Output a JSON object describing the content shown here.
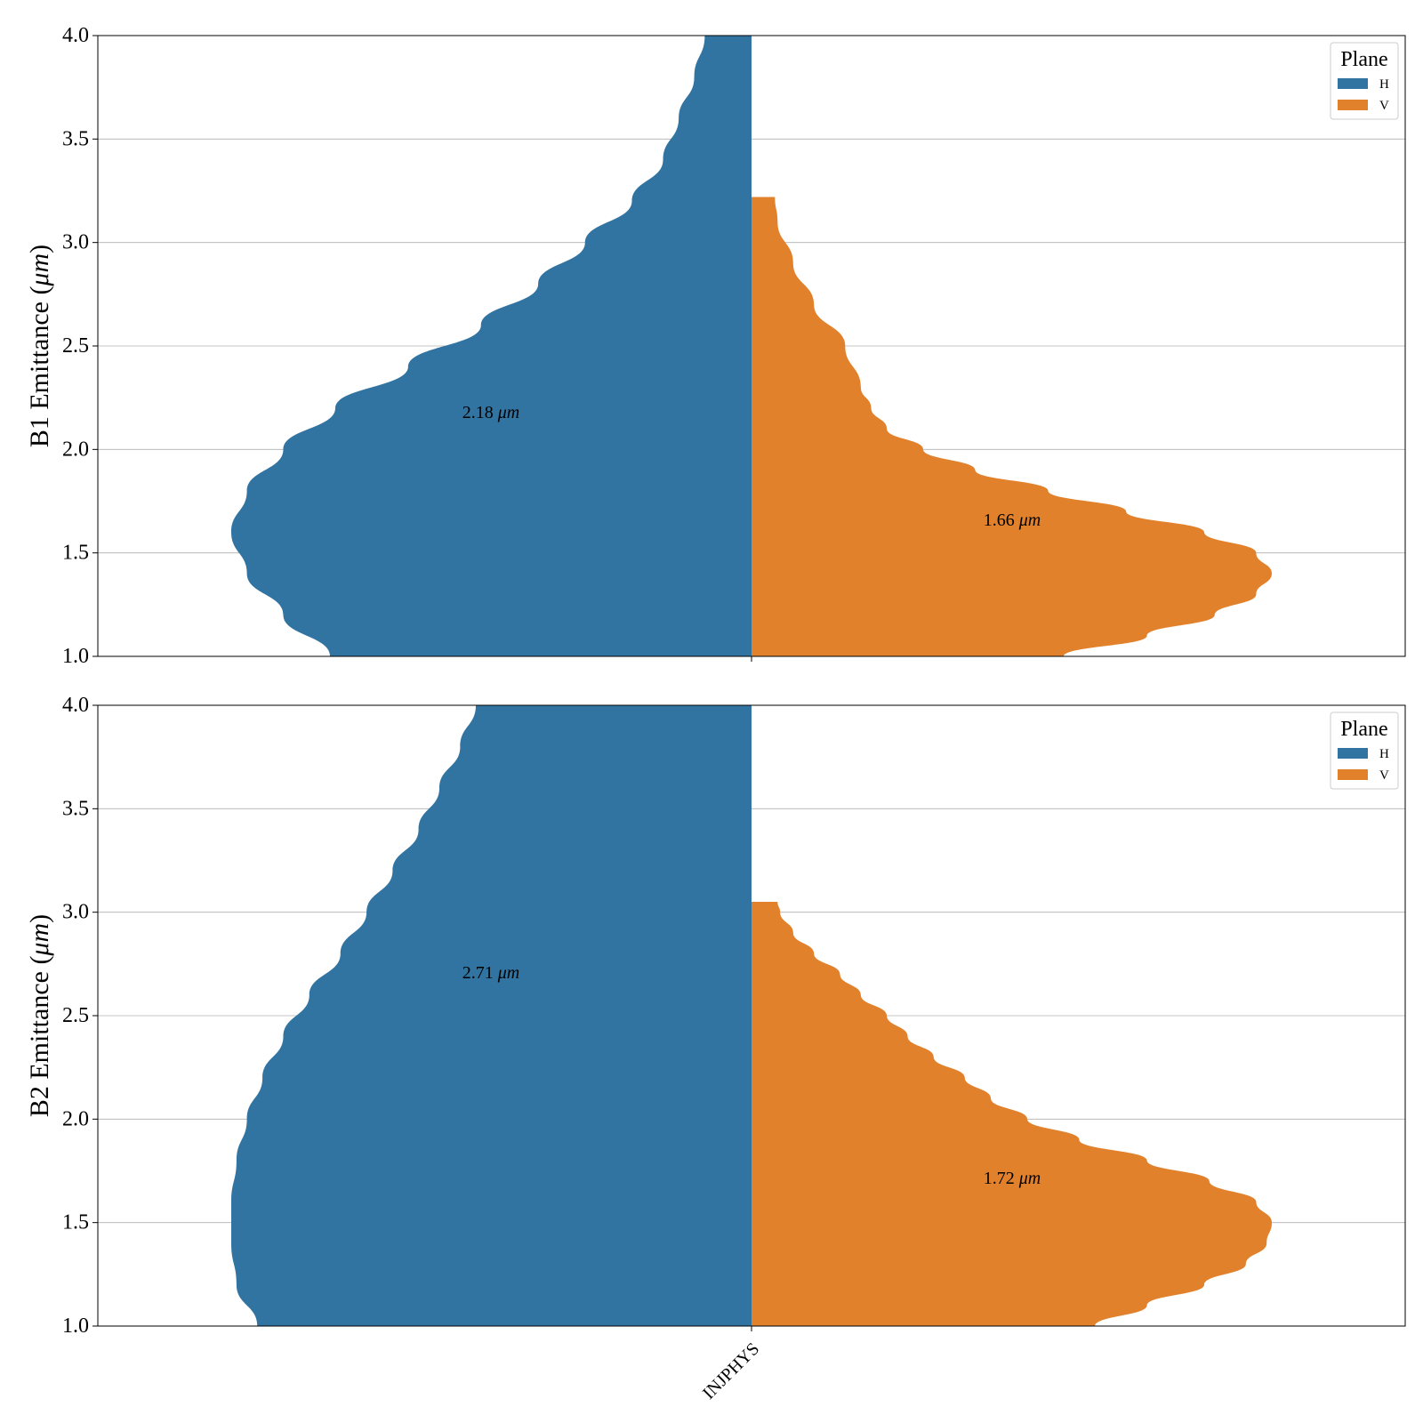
{
  "chart_data": [
    {
      "type": "violin",
      "ylabel": "B1 Emittance (μm)",
      "ylabel_prefix": "B1 Emittance (",
      "ylabel_unit": "μm",
      "ylabel_suffix": ")",
      "ylim": [
        1.0,
        4.0
      ],
      "yticks": [
        "1.0",
        "1.5",
        "2.0",
        "2.5",
        "3.0",
        "3.5",
        "4.0"
      ],
      "grid": "y",
      "legend": {
        "title": "Plane",
        "placement": "top-right",
        "entries": [
          "H",
          "V"
        ]
      },
      "categories": [
        "INJPHYS"
      ],
      "series": [
        {
          "name": "H",
          "color": "#3274a1",
          "median_label": "2.18",
          "median_value": 2.18,
          "median_unit": "μm",
          "density": [
            [
              1.0,
              0.81
            ],
            [
              1.2,
              0.9
            ],
            [
              1.4,
              0.97
            ],
            [
              1.6,
              1.0
            ],
            [
              1.8,
              0.97
            ],
            [
              2.0,
              0.9
            ],
            [
              2.2,
              0.8
            ],
            [
              2.4,
              0.66
            ],
            [
              2.6,
              0.52
            ],
            [
              2.8,
              0.41
            ],
            [
              3.0,
              0.32
            ],
            [
              3.2,
              0.23
            ],
            [
              3.4,
              0.17
            ],
            [
              3.6,
              0.14
            ],
            [
              3.8,
              0.11
            ],
            [
              4.0,
              0.09
            ]
          ]
        },
        {
          "name": "V",
          "color": "#e1812c",
          "median_label": "1.66",
          "median_value": 1.66,
          "median_unit": "μm",
          "max_value": 3.22,
          "density": [
            [
              1.0,
              0.6
            ],
            [
              1.1,
              0.76
            ],
            [
              1.2,
              0.89
            ],
            [
              1.3,
              0.97
            ],
            [
              1.4,
              1.0
            ],
            [
              1.5,
              0.97
            ],
            [
              1.6,
              0.87
            ],
            [
              1.7,
              0.72
            ],
            [
              1.8,
              0.57
            ],
            [
              1.9,
              0.43
            ],
            [
              2.0,
              0.33
            ],
            [
              2.1,
              0.26
            ],
            [
              2.2,
              0.23
            ],
            [
              2.3,
              0.21
            ],
            [
              2.5,
              0.18
            ],
            [
              2.7,
              0.12
            ],
            [
              2.9,
              0.08
            ],
            [
              3.1,
              0.05
            ],
            [
              3.22,
              0.045
            ]
          ]
        }
      ]
    },
    {
      "type": "violin",
      "ylabel": "B2 Emittance (μm)",
      "ylabel_prefix": "B2 Emittance (",
      "ylabel_unit": "μm",
      "ylabel_suffix": ")",
      "ylim": [
        1.0,
        4.0
      ],
      "yticks": [
        "1.0",
        "1.5",
        "2.0",
        "2.5",
        "3.0",
        "3.5",
        "4.0"
      ],
      "grid": "y",
      "legend": {
        "title": "Plane",
        "placement": "top-right",
        "entries": [
          "H",
          "V"
        ]
      },
      "categories": [
        "INJPHYS"
      ],
      "series": [
        {
          "name": "H",
          "color": "#3274a1",
          "median_label": "2.71",
          "median_value": 2.71,
          "median_unit": "μm",
          "density": [
            [
              1.0,
              0.95
            ],
            [
              1.2,
              0.99
            ],
            [
              1.4,
              1.0
            ],
            [
              1.6,
              1.0
            ],
            [
              1.8,
              0.99
            ],
            [
              2.0,
              0.97
            ],
            [
              2.2,
              0.94
            ],
            [
              2.4,
              0.9
            ],
            [
              2.6,
              0.85
            ],
            [
              2.8,
              0.79
            ],
            [
              3.0,
              0.74
            ],
            [
              3.2,
              0.69
            ],
            [
              3.4,
              0.64
            ],
            [
              3.6,
              0.6
            ],
            [
              3.8,
              0.56
            ],
            [
              4.0,
              0.53
            ]
          ]
        },
        {
          "name": "V",
          "color": "#e1812c",
          "median_label": "1.72",
          "median_value": 1.72,
          "median_unit": "μm",
          "max_value": 3.05,
          "density": [
            [
              1.0,
              0.66
            ],
            [
              1.1,
              0.76
            ],
            [
              1.2,
              0.87
            ],
            [
              1.3,
              0.95
            ],
            [
              1.4,
              0.99
            ],
            [
              1.5,
              1.0
            ],
            [
              1.6,
              0.97
            ],
            [
              1.7,
              0.88
            ],
            [
              1.8,
              0.76
            ],
            [
              1.9,
              0.63
            ],
            [
              2.0,
              0.53
            ],
            [
              2.1,
              0.46
            ],
            [
              2.2,
              0.41
            ],
            [
              2.3,
              0.35
            ],
            [
              2.4,
              0.3
            ],
            [
              2.5,
              0.26
            ],
            [
              2.6,
              0.21
            ],
            [
              2.7,
              0.17
            ],
            [
              2.8,
              0.12
            ],
            [
              2.9,
              0.08
            ],
            [
              3.0,
              0.055
            ],
            [
              3.05,
              0.05
            ]
          ]
        }
      ]
    }
  ],
  "legend": {
    "title": "Plane",
    "h_label": "H",
    "v_label": "V"
  },
  "x_category": "INJPHYS"
}
